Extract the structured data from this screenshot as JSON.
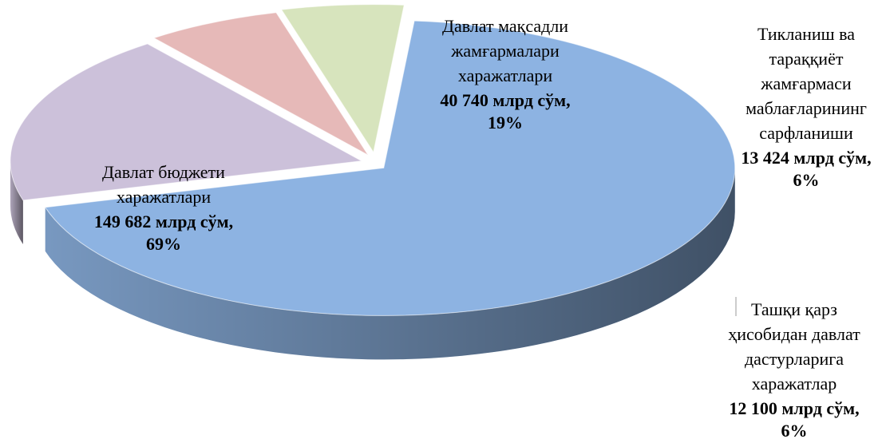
{
  "chart_data": {
    "type": "pie",
    "categories": [
      [
        "Давлат бюджети",
        "харажатлари"
      ],
      [
        "Давлат мақсадли",
        "жамғармалари",
        "харажатлари"
      ],
      [
        "Тикланиш ва",
        "тараққиёт",
        "жамғармаси",
        "маблағларининг",
        "сарфланиши"
      ],
      [
        "Ташқи қарз",
        "ҳисобидан давлат",
        "дастурларига",
        "харажатлар"
      ]
    ],
    "values": [
      149682,
      40740,
      13424,
      12100
    ],
    "value_labels": [
      "149 682 млрд сўм,",
      "40 740 млрд сўм,",
      "13 424 млрд сўм,",
      "12 100 млрд сўм,"
    ],
    "percents": [
      69,
      19,
      6,
      6
    ],
    "percent_labels": [
      "69%",
      "19%",
      "6%",
      "6%"
    ],
    "colors": [
      "#8db3e2",
      "#ccc1da",
      "#e6b9b8",
      "#d7e4bd"
    ]
  }
}
